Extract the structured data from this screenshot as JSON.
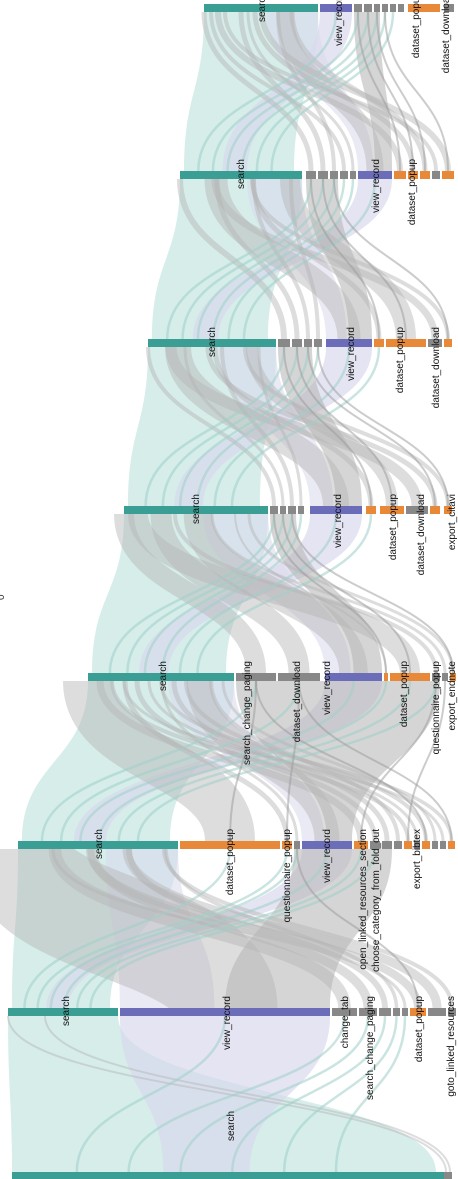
{
  "colors": {
    "search": "#3a9e94",
    "view_record": "#6b6db8",
    "dataset": "#e8893a",
    "other": "#888888",
    "flow_search": "#d4ece9",
    "flow_view": "#d8d9ec",
    "flow_other": "#b3b3b3",
    "flow_teal": "#9ed0c9"
  },
  "stray_text": "0",
  "columns": [
    {
      "id": "step-1",
      "labels": [
        {
          "key": "search",
          "text": "search"
        }
      ]
    },
    {
      "id": "step-2",
      "labels": [
        {
          "key": "search",
          "text": "search"
        },
        {
          "key": "view_record",
          "text": "view_record"
        },
        {
          "key": "change_tab",
          "text": "change_tab"
        },
        {
          "key": "search_change_paging",
          "text": "search_change_paging"
        },
        {
          "key": "dataset_popup",
          "text": "dataset_popup"
        },
        {
          "key": "goto_linked_resources",
          "text": "goto_linked_resources"
        }
      ]
    },
    {
      "id": "step-3",
      "labels": [
        {
          "key": "search",
          "text": "search"
        },
        {
          "key": "dataset_popup",
          "text": "dataset_popup"
        },
        {
          "key": "questionnaire_popup",
          "text": "questionnaire_popup"
        },
        {
          "key": "view_record",
          "text": "view_record"
        },
        {
          "key": "open_linked_resources_section",
          "text": "open_linked_resources_section"
        },
        {
          "key": "choose_category_from_fold_out",
          "text": "choose_category_from_fold_out"
        },
        {
          "key": "export_bibtex",
          "text": "export_bibtex"
        }
      ]
    },
    {
      "id": "step-4",
      "labels": [
        {
          "key": "search",
          "text": "search"
        },
        {
          "key": "search_change_paging",
          "text": "search_change_paging"
        },
        {
          "key": "dataset_download",
          "text": "dataset_download"
        },
        {
          "key": "view_record",
          "text": "view_record"
        },
        {
          "key": "dataset_popup",
          "text": "dataset_popup"
        },
        {
          "key": "questionnaire_popup",
          "text": "questionnaire_popup"
        },
        {
          "key": "export_endnote",
          "text": "export_endnote"
        }
      ]
    },
    {
      "id": "step-5",
      "labels": [
        {
          "key": "search",
          "text": "search"
        },
        {
          "key": "view_record",
          "text": "view_record"
        },
        {
          "key": "dataset_popup",
          "text": "dataset_popup"
        },
        {
          "key": "dataset_download",
          "text": "dataset_download"
        },
        {
          "key": "export_citavi",
          "text": "export_citavi"
        }
      ]
    },
    {
      "id": "step-6",
      "labels": [
        {
          "key": "search",
          "text": "search"
        },
        {
          "key": "view_record",
          "text": "view_record"
        },
        {
          "key": "dataset_popup",
          "text": "dataset_popup"
        },
        {
          "key": "dataset_download",
          "text": "dataset_download"
        }
      ]
    },
    {
      "id": "step-7",
      "labels": [
        {
          "key": "search",
          "text": "search"
        },
        {
          "key": "view_record",
          "text": "view_record"
        },
        {
          "key": "dataset_popup",
          "text": "dataset_popup"
        }
      ]
    },
    {
      "id": "step-8",
      "labels": [
        {
          "key": "search",
          "text": "search"
        },
        {
          "key": "view_record",
          "text": "view_record"
        },
        {
          "key": "dataset_popup",
          "text": "dataset_popup"
        },
        {
          "key": "dataset_download",
          "text": "dataset_download"
        }
      ]
    }
  ]
}
